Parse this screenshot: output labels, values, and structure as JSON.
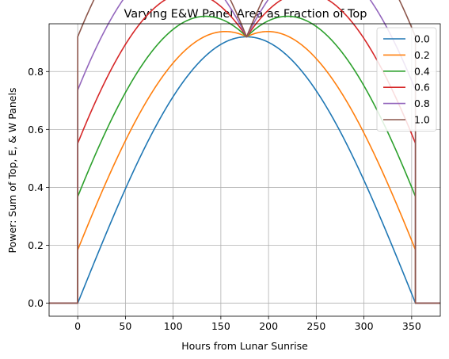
{
  "chart_data": {
    "type": "line",
    "title": "Varying E&W Panel Area as Fraction of Top",
    "xlabel": "Hours from Lunar Sunrise",
    "ylabel": "Power: Sum of Top, E, & W Panels",
    "xlim": [
      -30,
      380
    ],
    "ylim": [
      -0.045,
      0.965
    ],
    "xticks": [
      0,
      50,
      100,
      150,
      200,
      250,
      300,
      350
    ],
    "yticks": [
      0.0,
      0.2,
      0.4,
      0.6,
      0.8
    ],
    "ytick_labels": [
      "0.0",
      "0.2",
      "0.4",
      "0.6",
      "0.8"
    ],
    "grid": true,
    "legend_position": "upper-right",
    "day_length_hours": 354,
    "series": [
      {
        "name": "0.0",
        "fraction": 0.0,
        "color": "#1f77b4"
      },
      {
        "name": "0.2",
        "fraction": 0.2,
        "color": "#ff7f0e"
      },
      {
        "name": "0.4",
        "fraction": 0.4,
        "color": "#2ca02c"
      },
      {
        "name": "0.6",
        "fraction": 0.6,
        "color": "#d62728"
      },
      {
        "name": "0.8",
        "fraction": 0.8,
        "color": "#9467bd"
      },
      {
        "name": "1.0",
        "fraction": 1.0,
        "color": "#8c564b"
      }
    ]
  }
}
